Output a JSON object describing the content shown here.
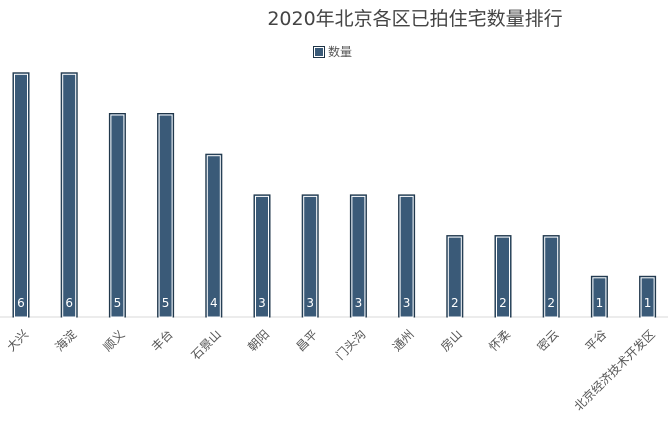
{
  "chart_data": {
    "type": "bar",
    "title": "2020年北京各区已拍住宅数量排行",
    "legend": {
      "position": "top",
      "entries": [
        "数量"
      ]
    },
    "categories": [
      "大兴",
      "海淀",
      "顺义",
      "丰台",
      "石景山",
      "朝阳",
      "昌平",
      "门头沟",
      "通州",
      "房山",
      "怀柔",
      "密云",
      "平谷",
      "北京经济技术开发区"
    ],
    "series": [
      {
        "name": "数量",
        "values": [
          6,
          6,
          5,
          5,
          4,
          3,
          3,
          3,
          3,
          2,
          2,
          2,
          1,
          1
        ],
        "color": "#3a5a78"
      }
    ],
    "ylim": [
      0,
      6
    ],
    "grid": false,
    "data_labels": true
  }
}
